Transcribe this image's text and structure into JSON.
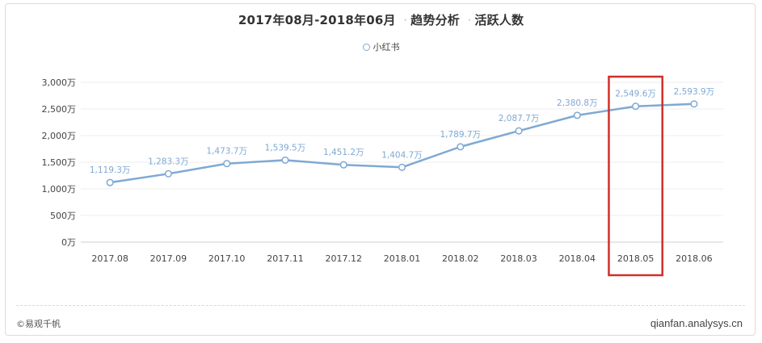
{
  "chart_data": {
    "type": "line",
    "title": "2017年08月-2018年06月",
    "subtitle_parts": [
      "趋势分析",
      "活跃人数"
    ],
    "categories": [
      "2017.08",
      "2017.09",
      "2017.10",
      "2017.11",
      "2017.12",
      "2018.01",
      "2018.02",
      "2018.03",
      "2018.04",
      "2018.05",
      "2018.06"
    ],
    "series": [
      {
        "name": "小红书",
        "values": [
          1119.3,
          1283.3,
          1473.7,
          1539.5,
          1451.2,
          1404.7,
          1789.7,
          2087.7,
          2380.8,
          2549.6,
          2593.9
        ],
        "labels": [
          "1,119.3万",
          "1,283.3万",
          "1,473.7万",
          "1,539.5万",
          "1,451.2万",
          "1,404.7万",
          "1,789.7万",
          "2,087.7万",
          "2,380.8万",
          "2,549.6万",
          "2,593.9万"
        ]
      }
    ],
    "yticks": [
      0,
      500,
      1000,
      1500,
      2000,
      2500,
      3000
    ],
    "ytick_labels": [
      "0万",
      "500万",
      "1,000万",
      "1,500万",
      "2,000万",
      "2,500万",
      "3,000万"
    ],
    "ylim": [
      0,
      3000
    ],
    "highlight_category": "2018.05",
    "legend_position": "top-center",
    "grid": true,
    "colors": {
      "line": "#7fa9d4",
      "label": "#7fa9d4",
      "highlight_box": "#d0302a"
    }
  },
  "footer": {
    "left": "©易观千帆",
    "right": "qianfan.analysys.cn"
  }
}
